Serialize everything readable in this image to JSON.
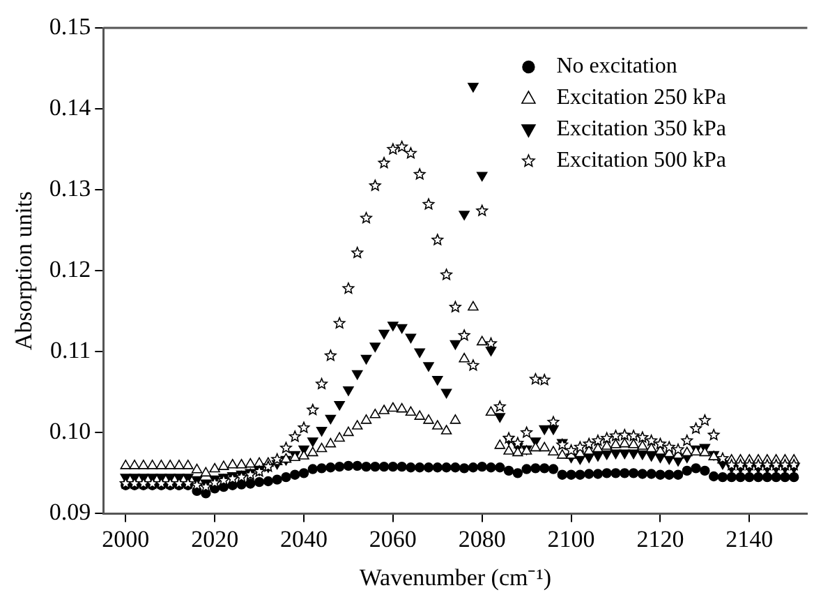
{
  "chart_data": {
    "type": "scatter",
    "xlabel": "Wavenumber (cm⁻¹)",
    "ylabel": "Absorption units",
    "x": [
      2000,
      2002,
      2004,
      2006,
      2008,
      2010,
      2012,
      2014,
      2016,
      2018,
      2020,
      2022,
      2024,
      2026,
      2028,
      2030,
      2032,
      2034,
      2036,
      2038,
      2040,
      2042,
      2044,
      2046,
      2048,
      2050,
      2052,
      2054,
      2056,
      2058,
      2060,
      2062,
      2064,
      2066,
      2068,
      2070,
      2072,
      2074,
      2076,
      2078,
      2080,
      2082,
      2084,
      2086,
      2088,
      2090,
      2092,
      2094,
      2096,
      2098,
      2100,
      2102,
      2104,
      2106,
      2108,
      2110,
      2112,
      2114,
      2116,
      2118,
      2120,
      2122,
      2124,
      2126,
      2128,
      2130,
      2132,
      2134,
      2136,
      2138,
      2140,
      2142,
      2144,
      2146,
      2148,
      2150
    ],
    "series": [
      {
        "name": "No excitation",
        "color": "#000000",
        "marker": "circle",
        "values": [
          0.0935,
          0.0935,
          0.0935,
          0.0935,
          0.0935,
          0.0935,
          0.0935,
          0.0935,
          0.0928,
          0.0925,
          0.0931,
          0.0933,
          0.0935,
          0.0936,
          0.0937,
          0.0939,
          0.094,
          0.0942,
          0.0945,
          0.0948,
          0.095,
          0.0955,
          0.0956,
          0.0957,
          0.0958,
          0.0959,
          0.0959,
          0.0958,
          0.0958,
          0.0958,
          0.0958,
          0.0958,
          0.0957,
          0.0957,
          0.0957,
          0.0957,
          0.0957,
          0.0957,
          0.0956,
          0.0957,
          0.0958,
          0.0957,
          0.0957,
          0.0953,
          0.095,
          0.0955,
          0.0956,
          0.0956,
          0.0955,
          0.0948,
          0.0948,
          0.0948,
          0.0949,
          0.0949,
          0.095,
          0.095,
          0.095,
          0.095,
          0.0949,
          0.0949,
          0.0948,
          0.0948,
          0.0948,
          0.0953,
          0.0956,
          0.0953,
          0.0946,
          0.0945,
          0.0945,
          0.0945,
          0.0945,
          0.0945,
          0.0945,
          0.0945,
          0.0945,
          0.0945
        ]
      },
      {
        "name": "Excitation 250 kPa",
        "color": "#000000",
        "marker": "triangle",
        "values": [
          0.0959,
          0.0959,
          0.0959,
          0.0959,
          0.0959,
          0.0959,
          0.0959,
          0.0959,
          0.0954,
          0.095,
          0.0955,
          0.0958,
          0.096,
          0.096,
          0.0961,
          0.0962,
          0.0962,
          0.0964,
          0.0967,
          0.0969,
          0.0971,
          0.0975,
          0.098,
          0.0986,
          0.0993,
          0.1,
          0.1008,
          0.1015,
          0.1022,
          0.1027,
          0.103,
          0.1029,
          0.1025,
          0.102,
          0.1015,
          0.1008,
          0.1002,
          0.1015,
          0.1091,
          0.1155,
          0.1112,
          0.1025,
          0.0984,
          0.0977,
          0.0975,
          0.0977,
          0.0981,
          0.0981,
          0.0976,
          0.0972,
          0.0972,
          0.0974,
          0.0977,
          0.098,
          0.0983,
          0.0985,
          0.0986,
          0.0985,
          0.0983,
          0.098,
          0.0977,
          0.0974,
          0.0972,
          0.0975,
          0.0976,
          0.0975,
          0.097,
          0.0966,
          0.0966,
          0.0966,
          0.0966,
          0.0966,
          0.0966,
          0.0966,
          0.0966,
          0.0966
        ]
      },
      {
        "name": "Excitation 350 kPa",
        "color": "#000000",
        "marker": "triangle-down",
        "values": [
          0.0945,
          0.0945,
          0.0945,
          0.0945,
          0.0945,
          0.0945,
          0.0945,
          0.0945,
          0.0942,
          0.0938,
          0.0943,
          0.0945,
          0.0947,
          0.0949,
          0.0951,
          0.0954,
          0.0958,
          0.0962,
          0.0967,
          0.0973,
          0.098,
          0.099,
          0.1003,
          0.1018,
          0.1035,
          0.1053,
          0.1073,
          0.1092,
          0.1107,
          0.1123,
          0.1133,
          0.113,
          0.1118,
          0.11,
          0.1083,
          0.1066,
          0.105,
          0.111,
          0.127,
          0.1428,
          0.1318,
          0.1102,
          0.102,
          0.0992,
          0.0983,
          0.098,
          0.099,
          0.1005,
          0.1005,
          0.0988,
          0.097,
          0.0968,
          0.097,
          0.0972,
          0.0974,
          0.0975,
          0.0975,
          0.0975,
          0.0974,
          0.0972,
          0.097,
          0.0968,
          0.0966,
          0.097,
          0.098,
          0.0982,
          0.0973,
          0.0962,
          0.0957,
          0.0957,
          0.0957,
          0.0957,
          0.0957,
          0.0957,
          0.0957,
          0.0957
        ]
      },
      {
        "name": "Excitation 500 kPa",
        "color": "#000000",
        "marker": "star",
        "values": [
          0.0937,
          0.0937,
          0.0937,
          0.0937,
          0.0937,
          0.0937,
          0.0937,
          0.0937,
          0.0935,
          0.0933,
          0.0938,
          0.0941,
          0.0943,
          0.0945,
          0.0948,
          0.0952,
          0.0958,
          0.0967,
          0.0981,
          0.0995,
          0.1006,
          0.1028,
          0.106,
          0.1095,
          0.1135,
          0.1178,
          0.1222,
          0.1265,
          0.1305,
          0.1333,
          0.135,
          0.1353,
          0.1345,
          0.1319,
          0.1282,
          0.1238,
          0.1195,
          0.1155,
          0.112,
          0.1083,
          0.1274,
          0.111,
          0.1032,
          0.0993,
          0.0987,
          0.1,
          0.1066,
          0.1065,
          0.1013,
          0.0985,
          0.0978,
          0.0982,
          0.0986,
          0.099,
          0.0993,
          0.0996,
          0.0997,
          0.0996,
          0.0994,
          0.099,
          0.0986,
          0.0982,
          0.0979,
          0.099,
          0.1005,
          0.1015,
          0.0997,
          0.0968,
          0.096,
          0.096,
          0.096,
          0.096,
          0.096,
          0.096,
          0.096,
          0.096
        ]
      }
    ],
    "xlim": [
      1995,
      2153
    ],
    "xticks": [
      2000,
      2020,
      2040,
      2060,
      2080,
      2100,
      2120,
      2140
    ],
    "ylim": [
      0.09,
      0.15
    ],
    "yticks": [
      0.09,
      {
        "value": 0.1,
        "label": "0.10"
      },
      0.11,
      0.12,
      0.13,
      0.14,
      0.15
    ],
    "grid": false,
    "legend": "top right"
  }
}
